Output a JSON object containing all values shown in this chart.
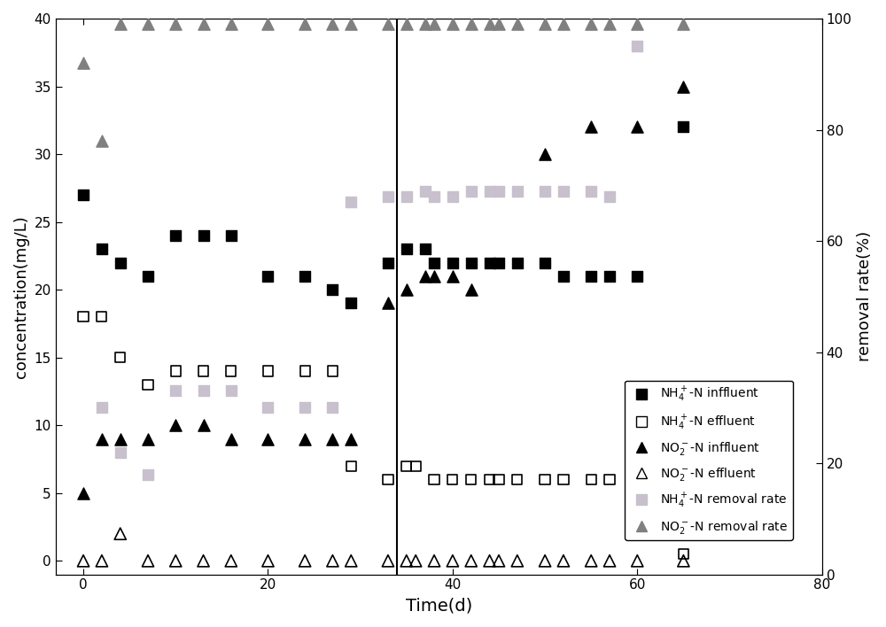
{
  "nh4_influent_x": [
    0,
    2,
    4,
    7,
    10,
    13,
    16,
    20,
    24,
    27,
    29,
    33,
    35,
    37,
    38,
    40,
    42,
    44,
    45,
    47,
    50,
    52,
    55,
    57,
    60,
    65
  ],
  "nh4_influent_y": [
    27,
    23,
    22,
    21,
    24,
    24,
    24,
    21,
    21,
    20,
    19,
    22,
    23,
    23,
    22,
    22,
    22,
    22,
    22,
    22,
    22,
    21,
    21,
    21,
    21,
    32
  ],
  "nh4_effluent_x": [
    0,
    2,
    4,
    7,
    10,
    13,
    16,
    20,
    24,
    27,
    29,
    33,
    35,
    36,
    38,
    40,
    42,
    44,
    45,
    47,
    50,
    52,
    55,
    57,
    60,
    65
  ],
  "nh4_effluent_y": [
    18,
    18,
    15,
    13,
    14,
    14,
    14,
    14,
    14,
    14,
    7,
    6,
    7,
    7,
    6,
    6,
    6,
    6,
    6,
    6,
    6,
    6,
    6,
    6,
    6,
    0.5
  ],
  "no2_influent_x": [
    0,
    2,
    4,
    7,
    10,
    13,
    16,
    20,
    24,
    27,
    29,
    33,
    35,
    37,
    38,
    40,
    42,
    50,
    55,
    60,
    65
  ],
  "no2_influent_y": [
    5,
    9,
    9,
    9,
    10,
    10,
    9,
    9,
    9,
    9,
    9,
    19,
    20,
    21,
    21,
    21,
    20,
    30,
    32,
    32,
    35
  ],
  "no2_effluent_x": [
    0,
    2,
    4,
    7,
    10,
    13,
    16,
    20,
    24,
    27,
    29,
    33,
    35,
    36,
    38,
    40,
    42,
    44,
    45,
    47,
    50,
    52,
    55,
    57,
    60,
    65
  ],
  "no2_effluent_y": [
    0,
    0,
    2,
    0,
    0,
    0,
    0,
    0,
    0,
    0,
    0,
    0,
    0,
    0,
    0,
    0,
    0,
    0,
    0,
    0,
    0,
    0,
    0,
    0,
    0,
    0
  ],
  "nh4_removal_x": [
    2,
    4,
    7,
    10,
    13,
    16,
    20,
    24,
    27,
    29,
    33,
    35,
    37,
    38,
    40,
    42,
    44,
    45,
    47,
    50,
    52,
    55,
    57,
    60
  ],
  "nh4_removal_y": [
    30,
    22,
    18,
    33,
    33,
    33,
    30,
    30,
    30,
    67,
    68,
    68,
    69,
    68,
    68,
    69,
    69,
    69,
    69,
    69,
    69,
    69,
    68,
    95
  ],
  "no2_removal_x": [
    0,
    2,
    4,
    7,
    10,
    13,
    16,
    20,
    24,
    27,
    29,
    33,
    35,
    37,
    38,
    40,
    42,
    44,
    45,
    47,
    50,
    52,
    55,
    57,
    60,
    65
  ],
  "no2_removal_y": [
    92,
    78,
    99,
    99,
    99,
    99,
    99,
    99,
    99,
    99,
    99,
    99,
    99,
    99,
    99,
    99,
    99,
    99,
    99,
    99,
    99,
    99,
    99,
    99,
    99,
    99
  ],
  "vline_x": 34,
  "xlim": [
    -3,
    80
  ],
  "ylim_left": [
    -1,
    40
  ],
  "ylim_right": [
    0,
    100
  ],
  "xlabel": "Time(d)",
  "ylabel_left": "concentration(mg/L)",
  "ylabel_right": "removal rate(%)",
  "nh4_influent_label": "NH4⁺-N inffluent",
  "nh4_effluent_label": "NH4⁺-N effluent",
  "no2_influent_label": "NO2⁻-N inffluent",
  "no2_effluent_label": "NO2⁻-N effluent",
  "nh4_removal_label": "NH4⁺-N removal rate",
  "no2_removal_label": "NO2⁻-N removal rate",
  "nh4_removal_color": "#c8c0cc",
  "no2_removal_color": "#808080"
}
